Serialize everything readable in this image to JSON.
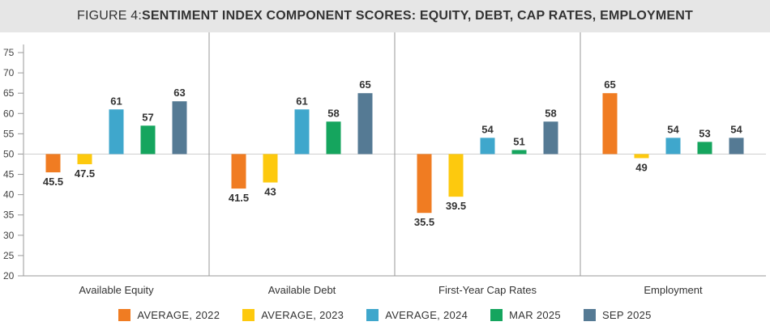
{
  "title": {
    "prefix": "FIGURE 4: ",
    "main": "SENTIMENT INDEX COMPONENT SCORES: EQUITY, DEBT, CAP RATES, EMPLOYMENT"
  },
  "chart_data": {
    "type": "bar",
    "title": "FIGURE 4: SENTIMENT INDEX COMPONENT SCORES: EQUITY, DEBT, CAP RATES, EMPLOYMENT",
    "categories": [
      "Available Equity",
      "Available Debt",
      "First-Year Cap Rates",
      "Employment"
    ],
    "baseline": 50,
    "ylim": [
      20,
      75
    ],
    "yticks": [
      20,
      25,
      30,
      35,
      40,
      45,
      50,
      55,
      60,
      65,
      70,
      75
    ],
    "grid": "vertical separators between categories",
    "legend_position": "bottom",
    "series": [
      {
        "name": "AVERAGE, 2022",
        "color": "#f07c22",
        "values": [
          45.5,
          41.5,
          35.5,
          65
        ],
        "labels": [
          "45.5",
          "41.5",
          "35.5",
          "65"
        ]
      },
      {
        "name": "AVERAGE, 2023",
        "color": "#fdc90e",
        "values": [
          47.5,
          43,
          39.5,
          49
        ],
        "labels": [
          "47.5",
          "43",
          "39.5",
          "49"
        ]
      },
      {
        "name": "AVERAGE, 2024",
        "color": "#3fa7cc",
        "values": [
          61,
          61,
          54,
          54
        ],
        "labels": [
          "61",
          "61",
          "54",
          "54"
        ]
      },
      {
        "name": "MAR 2025",
        "color": "#15a55e",
        "values": [
          57,
          58,
          51,
          53
        ],
        "labels": [
          "57",
          "58",
          "51",
          "53"
        ]
      },
      {
        "name": "SEP 2025",
        "color": "#557a94",
        "values": [
          63,
          65,
          58,
          54
        ],
        "labels": [
          "63",
          "65",
          "58",
          "54"
        ]
      }
    ]
  }
}
